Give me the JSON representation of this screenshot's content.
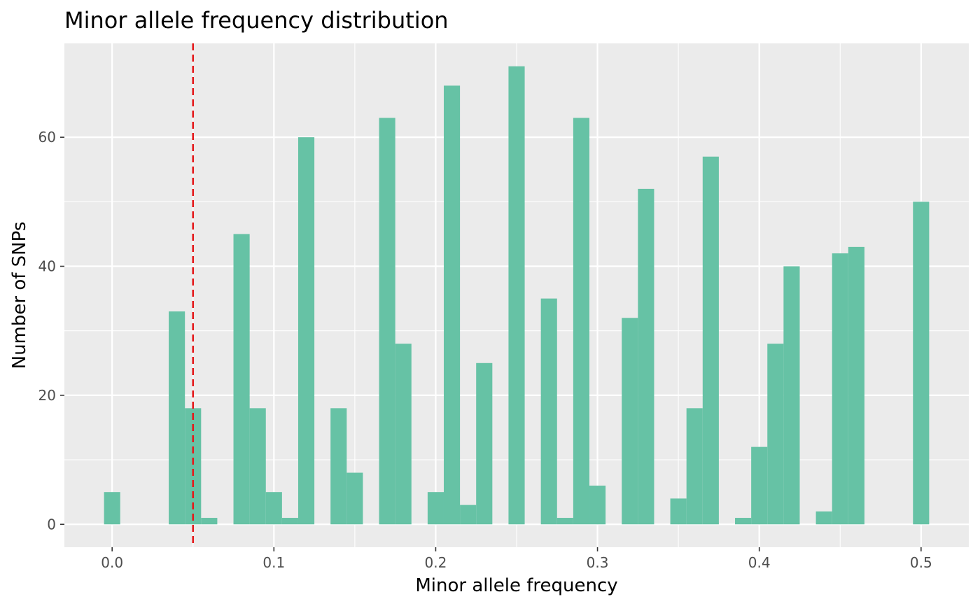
{
  "chart_data": {
    "type": "bar",
    "title": "Minor allele frequency distribution",
    "xlabel": "Minor allele frequency",
    "ylabel": "Number of SNPs",
    "xlim": [
      -0.0295,
      0.5295
    ],
    "ylim": [
      -3.55,
      74.55
    ],
    "x_ticks": [
      0.0,
      0.1,
      0.2,
      0.3,
      0.4,
      0.5
    ],
    "x_tick_labels": [
      "0.0",
      "0.1",
      "0.2",
      "0.3",
      "0.4",
      "0.5"
    ],
    "y_ticks": [
      0,
      20,
      40,
      60
    ],
    "y_tick_labels": [
      "0",
      "20",
      "40",
      "60"
    ],
    "bin_width": 0.01,
    "bins": [
      {
        "x": 0.0,
        "count": 5
      },
      {
        "x": 0.04,
        "count": 33
      },
      {
        "x": 0.05,
        "count": 18
      },
      {
        "x": 0.06,
        "count": 1
      },
      {
        "x": 0.08,
        "count": 45
      },
      {
        "x": 0.09,
        "count": 18
      },
      {
        "x": 0.1,
        "count": 5
      },
      {
        "x": 0.11,
        "count": 1
      },
      {
        "x": 0.12,
        "count": 60
      },
      {
        "x": 0.14,
        "count": 18
      },
      {
        "x": 0.15,
        "count": 8
      },
      {
        "x": 0.17,
        "count": 63
      },
      {
        "x": 0.18,
        "count": 28
      },
      {
        "x": 0.2,
        "count": 5
      },
      {
        "x": 0.21,
        "count": 68
      },
      {
        "x": 0.22,
        "count": 3
      },
      {
        "x": 0.23,
        "count": 25
      },
      {
        "x": 0.25,
        "count": 71
      },
      {
        "x": 0.27,
        "count": 35
      },
      {
        "x": 0.28,
        "count": 1
      },
      {
        "x": 0.29,
        "count": 63
      },
      {
        "x": 0.3,
        "count": 6
      },
      {
        "x": 0.32,
        "count": 32
      },
      {
        "x": 0.33,
        "count": 52
      },
      {
        "x": 0.35,
        "count": 4
      },
      {
        "x": 0.36,
        "count": 18
      },
      {
        "x": 0.37,
        "count": 57
      },
      {
        "x": 0.39,
        "count": 1
      },
      {
        "x": 0.4,
        "count": 12
      },
      {
        "x": 0.41,
        "count": 28
      },
      {
        "x": 0.42,
        "count": 40
      },
      {
        "x": 0.44,
        "count": 2
      },
      {
        "x": 0.45,
        "count": 42
      },
      {
        "x": 0.46,
        "count": 43
      },
      {
        "x": 0.5,
        "count": 50
      }
    ],
    "threshold_line": {
      "x": 0.05,
      "style": "dashed",
      "color": "#e41a1c"
    },
    "bar_color": "#66c2a5",
    "panel_background": "#ebebeb",
    "grid": true,
    "legend": "none"
  }
}
